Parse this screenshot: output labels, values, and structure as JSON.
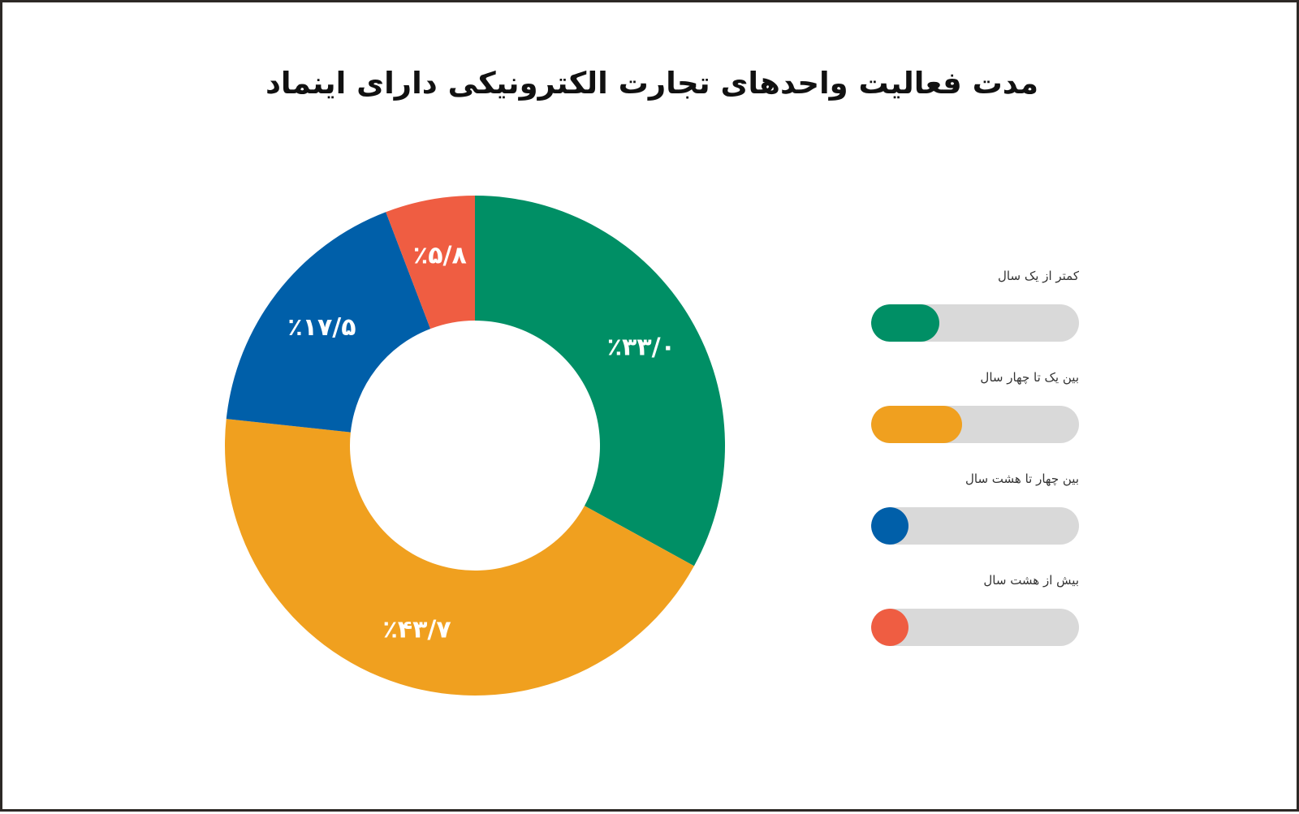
{
  "chart_data": {
    "type": "pie",
    "title": "مدت فعالیت واحدهای تجارت الکترونیکی دارای اینماد",
    "slices": [
      {
        "label": "کمتر از یک سال",
        "value": 33.0,
        "value_label": "٪۳۳/۰",
        "color": "#008f65"
      },
      {
        "label": "بین یک تا چهار سال",
        "value": 43.7,
        "value_label": "٪۴۳/۷",
        "color": "#f0a01f"
      },
      {
        "label": "بین چهار تا هشت سال",
        "value": 17.5,
        "value_label": "٪۱۷/۵",
        "color": "#005fa9"
      },
      {
        "label": "بیش از هشت سال",
        "value": 5.8,
        "value_label": "٪۵/۸",
        "color": "#ef5d42"
      }
    ],
    "legend_position": "right"
  }
}
